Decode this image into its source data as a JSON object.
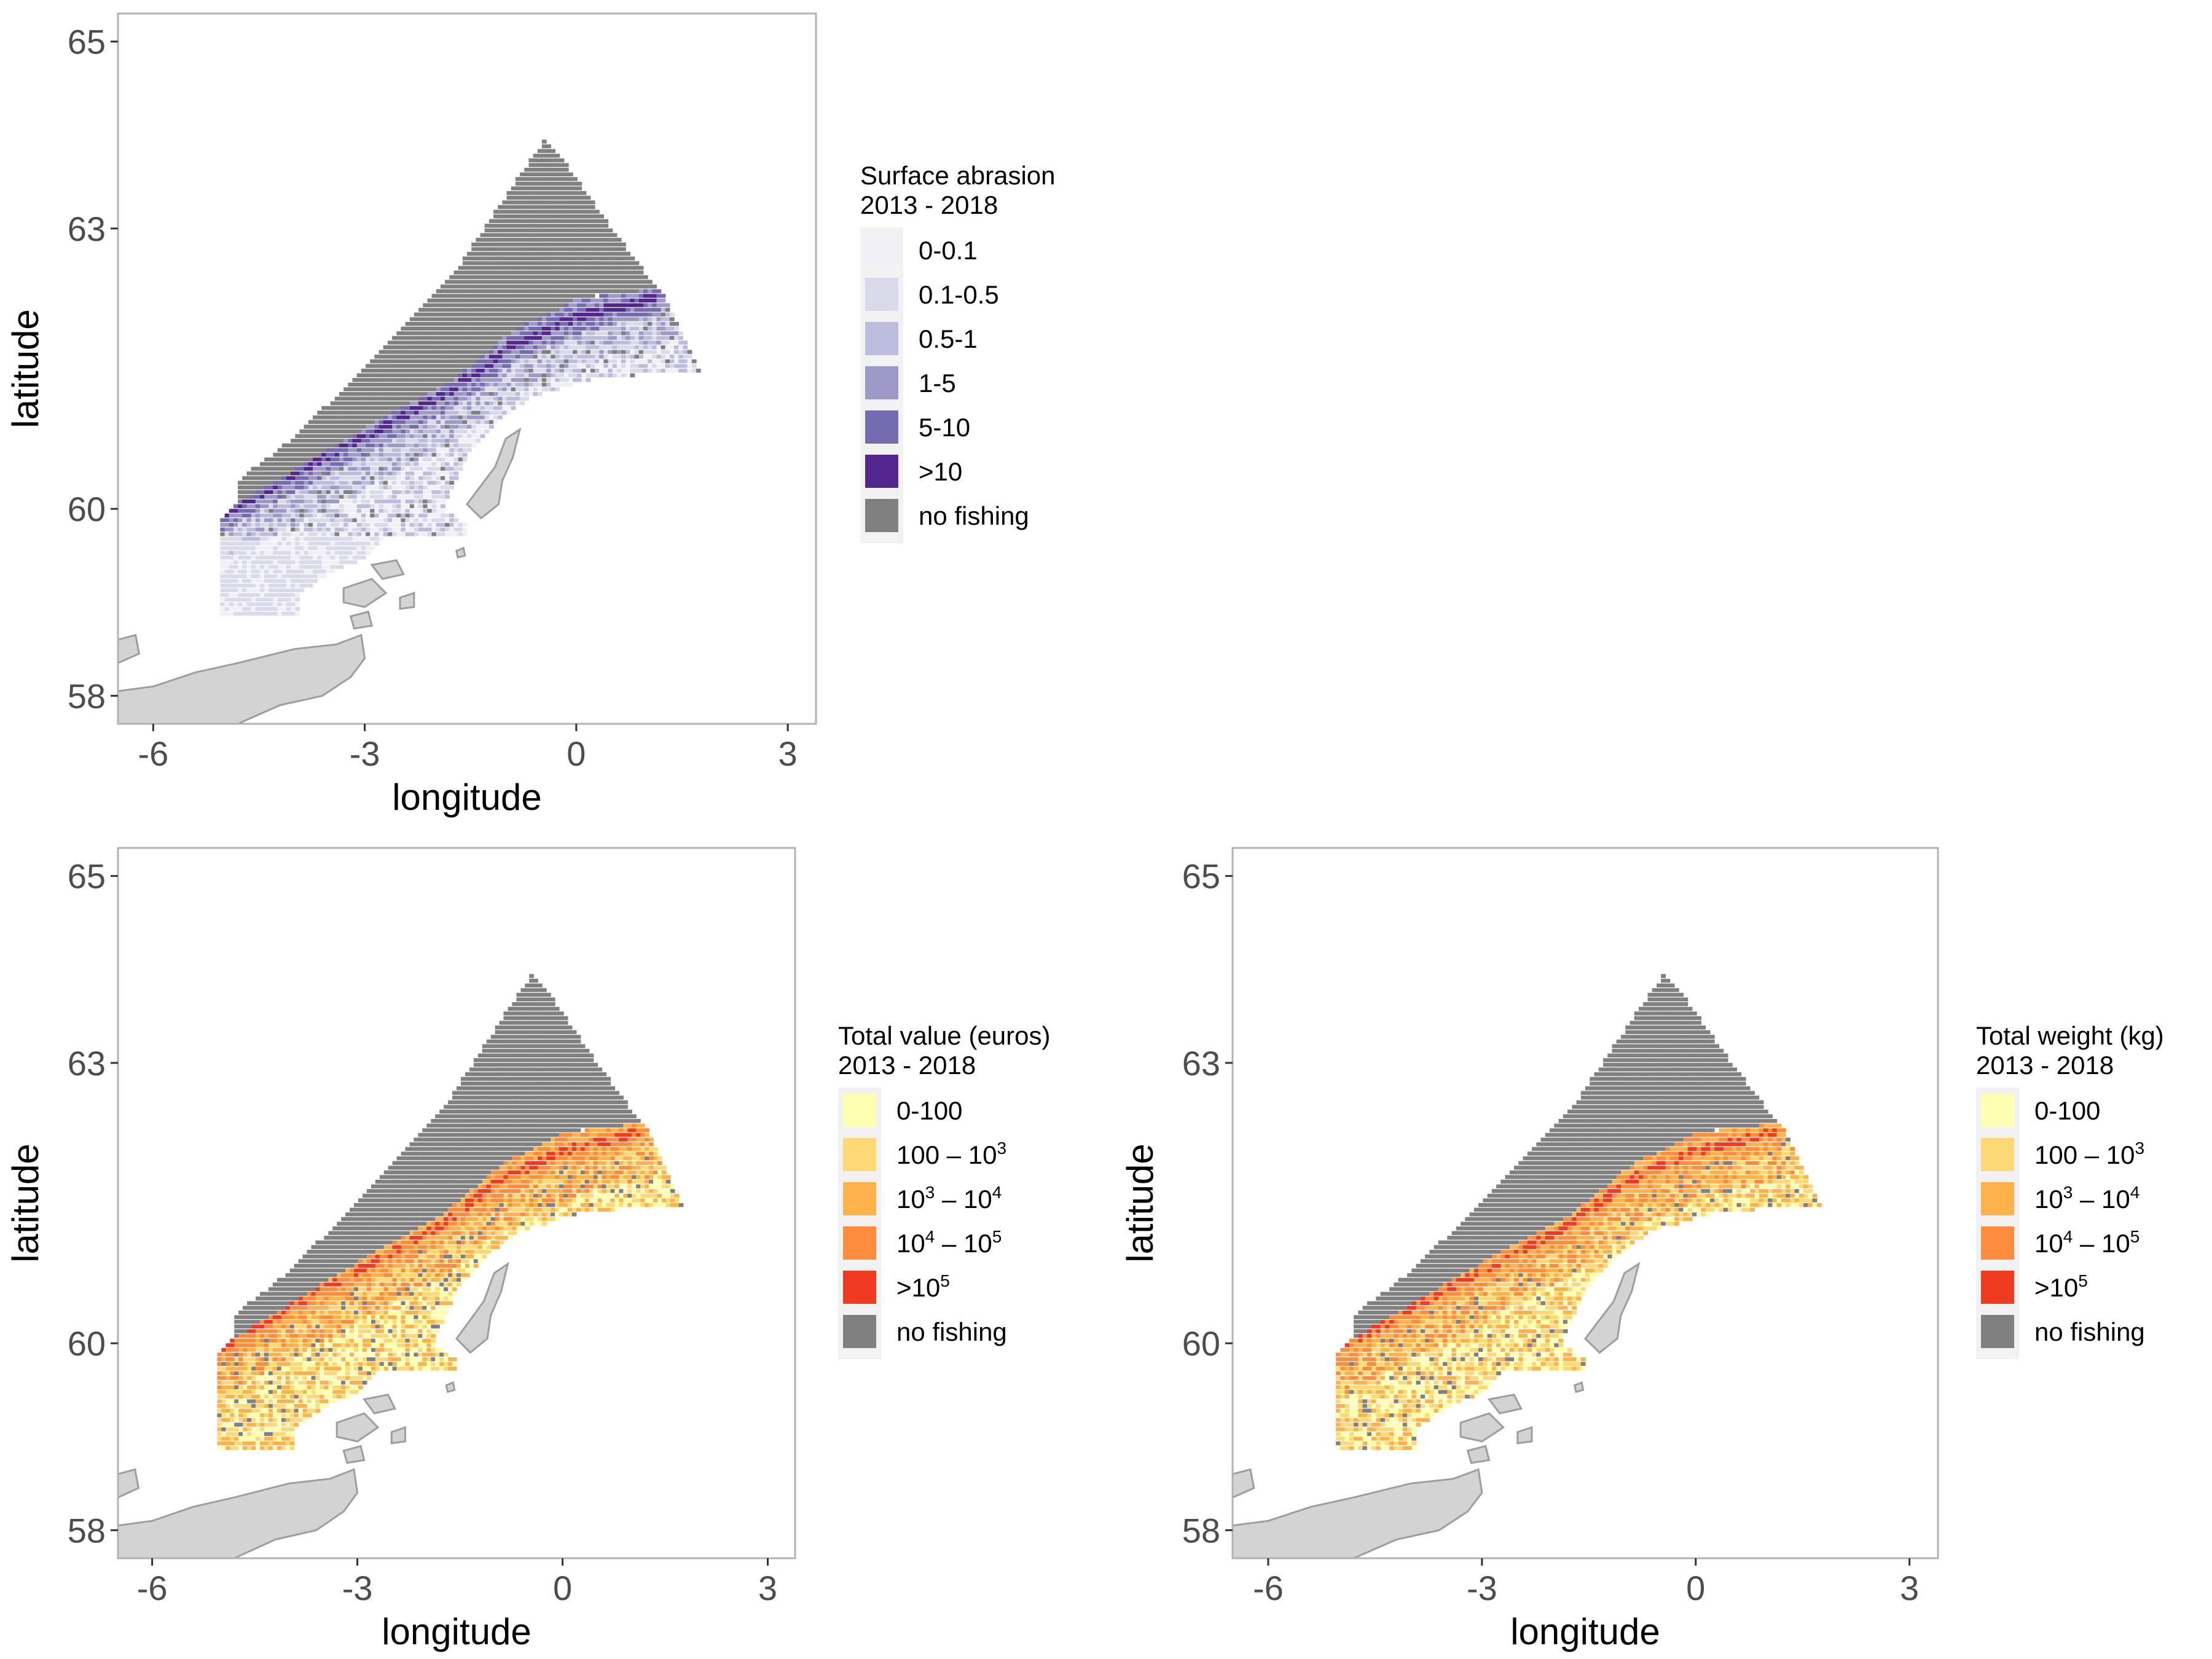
{
  "chart_data": [
    {
      "type": "heatmap",
      "panel": "surface-abrasion",
      "xlabel": "longitude",
      "ylabel": "latitude",
      "x_ticks": [
        "-6",
        "-3",
        "0",
        "3"
      ],
      "y_ticks": [
        "58",
        "60",
        "63",
        "65"
      ],
      "xlim": [
        -6.5,
        3.4
      ],
      "ylim": [
        57.7,
        65.3
      ],
      "legend": {
        "title_lines": [
          "Surface abrasion",
          " 2013 - 2018"
        ],
        "placement": "right",
        "entries": [
          {
            "label": "0-0.1",
            "color": "#f2f0f7"
          },
          {
            "label": "0.1-0.5",
            "color": "#dadaeb"
          },
          {
            "label": "0.5-1",
            "color": "#bcbddc"
          },
          {
            "label": "1-5",
            "color": "#9e9ac8"
          },
          {
            "label": "5-10",
            "color": "#756bb1"
          },
          {
            "label": ">10",
            "color": "#54278f"
          },
          {
            "label": "no fishing",
            "color": "#808080"
          }
        ]
      }
    },
    {
      "type": "heatmap",
      "panel": "total-value",
      "xlabel": "longitude",
      "ylabel": "latitude",
      "x_ticks": [
        "-6",
        "-3",
        "0",
        "3"
      ],
      "y_ticks": [
        "58",
        "60",
        "63",
        "65"
      ],
      "xlim": [
        -6.5,
        3.4
      ],
      "ylim": [
        57.7,
        65.3
      ],
      "legend": {
        "title_lines": [
          "Total value (euros)",
          " 2013 - 2018"
        ],
        "placement": "right",
        "entries": [
          {
            "label": "0-100",
            "color": "#ffffb2"
          },
          {
            "label": "100 – 10^3",
            "color": "#fed976"
          },
          {
            "label": "10^3 – 10^4",
            "color": "#feb24c"
          },
          {
            "label": "10^4 – 10^5",
            "color": "#fd8d3c"
          },
          {
            "label": ">10^5",
            "color": "#f03b20"
          },
          {
            "label": "no fishing",
            "color": "#808080"
          }
        ]
      }
    },
    {
      "type": "heatmap",
      "panel": "total-weight",
      "xlabel": "longitude",
      "ylabel": "latitude",
      "x_ticks": [
        "-6",
        "-3",
        "0",
        "3"
      ],
      "y_ticks": [
        "58",
        "60",
        "63",
        "65"
      ],
      "xlim": [
        -6.5,
        3.4
      ],
      "ylim": [
        57.7,
        65.3
      ],
      "legend": {
        "title_lines": [
          "Total weight (kg)",
          " 2013 - 2018"
        ],
        "placement": "right",
        "entries": [
          {
            "label": "0-100",
            "color": "#ffffb2"
          },
          {
            "label": "100 – 10^3",
            "color": "#fed976"
          },
          {
            "label": "10^3 – 10^4",
            "color": "#feb24c"
          },
          {
            "label": "10^4 – 10^5",
            "color": "#fd8d3c"
          },
          {
            "label": ">10^5",
            "color": "#f03b20"
          },
          {
            "label": "no fishing",
            "color": "#808080"
          }
        ]
      }
    }
  ],
  "colors": {
    "land_fill": "#d3d3d3",
    "land_stroke": "#9e9e9e",
    "no_fishing": "#808080",
    "panel_border": "#b3b3b3"
  }
}
